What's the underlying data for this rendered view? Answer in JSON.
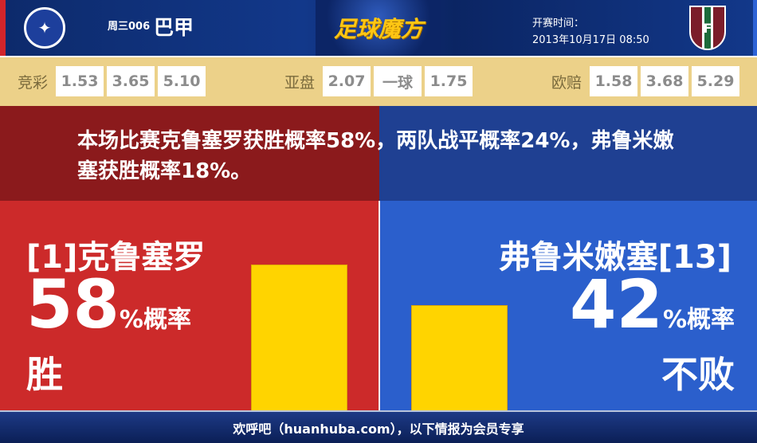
{
  "header": {
    "match_no": "周三006",
    "league": "巴甲",
    "brand": "足球魔方",
    "time_label": "开赛时间：",
    "time_value": "2013年10月17日 08:50",
    "home_logo_icon": "cruzeiro-crest-icon",
    "away_logo_icon": "fluminense-crest-icon"
  },
  "odds": [
    {
      "label": "竞彩",
      "values": [
        "1.53",
        "3.65",
        "5.10"
      ]
    },
    {
      "label": "亚盘",
      "values": [
        "2.07",
        "一球",
        "1.75"
      ]
    },
    {
      "label": "欧赔",
      "values": [
        "1.58",
        "3.68",
        "5.29"
      ]
    }
  ],
  "summary": "本场比赛克鲁塞罗获胜概率58%，两队战平概率24%，弗鲁米嫩塞获胜概率18%。",
  "home": {
    "name": "[1]克鲁塞罗",
    "percent": "58",
    "unit": "%概率",
    "result": "胜",
    "bar_value": 58,
    "color": "#cc2a2a"
  },
  "away": {
    "name": "弗鲁米嫩塞[13]",
    "percent": "42",
    "unit": "%概率",
    "result": "不败",
    "bar_value": 42,
    "color": "#2b5fcc"
  },
  "bar_color": "#ffd400",
  "footer": "欢呼吧（huanhuba.com），以下情报为会员专享"
}
